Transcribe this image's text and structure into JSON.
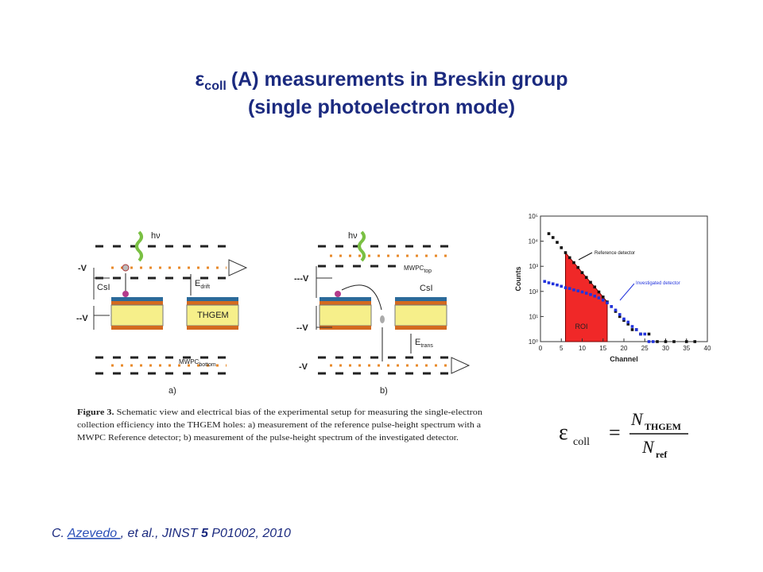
{
  "title": {
    "symbol": "ε",
    "subscript": "coll",
    "line1": "(A) measurements in Breskin group",
    "line2": "(single photoelectron mode)"
  },
  "figure": {
    "labels": {
      "photon_a": "hν",
      "photon_b": "hν",
      "v1_a": "-V",
      "v2_a": "--V",
      "csi_a": "CsI",
      "thgem": "THGEM",
      "e_drift": "E",
      "e_drift_sub": "drift",
      "mwpc_bottom": "MWPC",
      "mwpc_bottom_sub": "bottom",
      "panel_a": "a)",
      "v3_b": "---V",
      "v2_b": "--V",
      "v1_b": "-V",
      "mwpc_top": "MWPC",
      "mwpc_top_sub": "top",
      "csi_b": "CsI",
      "e_trans": "E",
      "e_trans_sub": "trans",
      "panel_b": "b)"
    },
    "caption": {
      "label": "Figure 3.",
      "lines": [
        " Schematic view and electrical bias of the experimental setup for measuring the single-electron",
        "collection efficiency into the THGEM holes: a) measurement of the reference pulse-height spectrum with a",
        "MWPC Reference detector; b) measurement of the pulse-height spectrum of the investigated detector."
      ]
    }
  },
  "plot": {
    "type": "scatter",
    "xlabel": "Channel",
    "ylabel": "Counts",
    "log_y": true,
    "xlim": [
      0,
      40
    ],
    "xticks": [
      0,
      5,
      10,
      15,
      20,
      25,
      30,
      35,
      40
    ],
    "ylim": [
      1,
      100000
    ],
    "yticks": [
      {
        "value": 1,
        "label": "10⁰"
      },
      {
        "value": 10,
        "label": "10¹"
      },
      {
        "value": 100,
        "label": "10²"
      },
      {
        "value": 1000,
        "label": "10³"
      },
      {
        "value": 10000,
        "label": "10⁴"
      },
      {
        "value": 100000,
        "label": "10⁵"
      }
    ],
    "roi": [
      6,
      16
    ],
    "roi_label": "ROI",
    "roi_color": "#ee1111",
    "series": [
      {
        "name": "Reference detector",
        "color": "#111111",
        "x": [
          2,
          3,
          4,
          5,
          6,
          7,
          8,
          9,
          10,
          11,
          12,
          13,
          14,
          15,
          16,
          17,
          18,
          19,
          20,
          21,
          22,
          23,
          24,
          26,
          28,
          30,
          32,
          35,
          37
        ],
        "values": [
          20000,
          14000,
          9000,
          5500,
          3500,
          2200,
          1400,
          900,
          560,
          360,
          230,
          150,
          95,
          60,
          38,
          25,
          16,
          10,
          7,
          5,
          3,
          3,
          2,
          2,
          1,
          1,
          1,
          1,
          1
        ]
      },
      {
        "name": "Investigated detector",
        "color": "#2233dd",
        "x": [
          1,
          2,
          3,
          4,
          5,
          6,
          7,
          8,
          9,
          10,
          11,
          12,
          13,
          14,
          15,
          16,
          17,
          18,
          19,
          20,
          21,
          22,
          23,
          24,
          25,
          26,
          27
        ],
        "values": [
          250,
          220,
          200,
          180,
          160,
          140,
          130,
          115,
          105,
          95,
          85,
          75,
          65,
          55,
          45,
          35,
          25,
          18,
          12,
          8,
          6,
          4,
          3,
          2,
          2,
          1,
          1
        ]
      }
    ]
  },
  "formula": {
    "lhs": "ε",
    "lhs_sub": "coll",
    "eq": "=",
    "num": "N",
    "num_sub": "THGEM",
    "den": "N",
    "den_sub": "ref"
  },
  "citation": {
    "prefix": "C. ",
    "author": "Azevedo ",
    "mid": ", et al., JINST ",
    "volume": "5",
    "suffix": " P01002, 2010"
  }
}
